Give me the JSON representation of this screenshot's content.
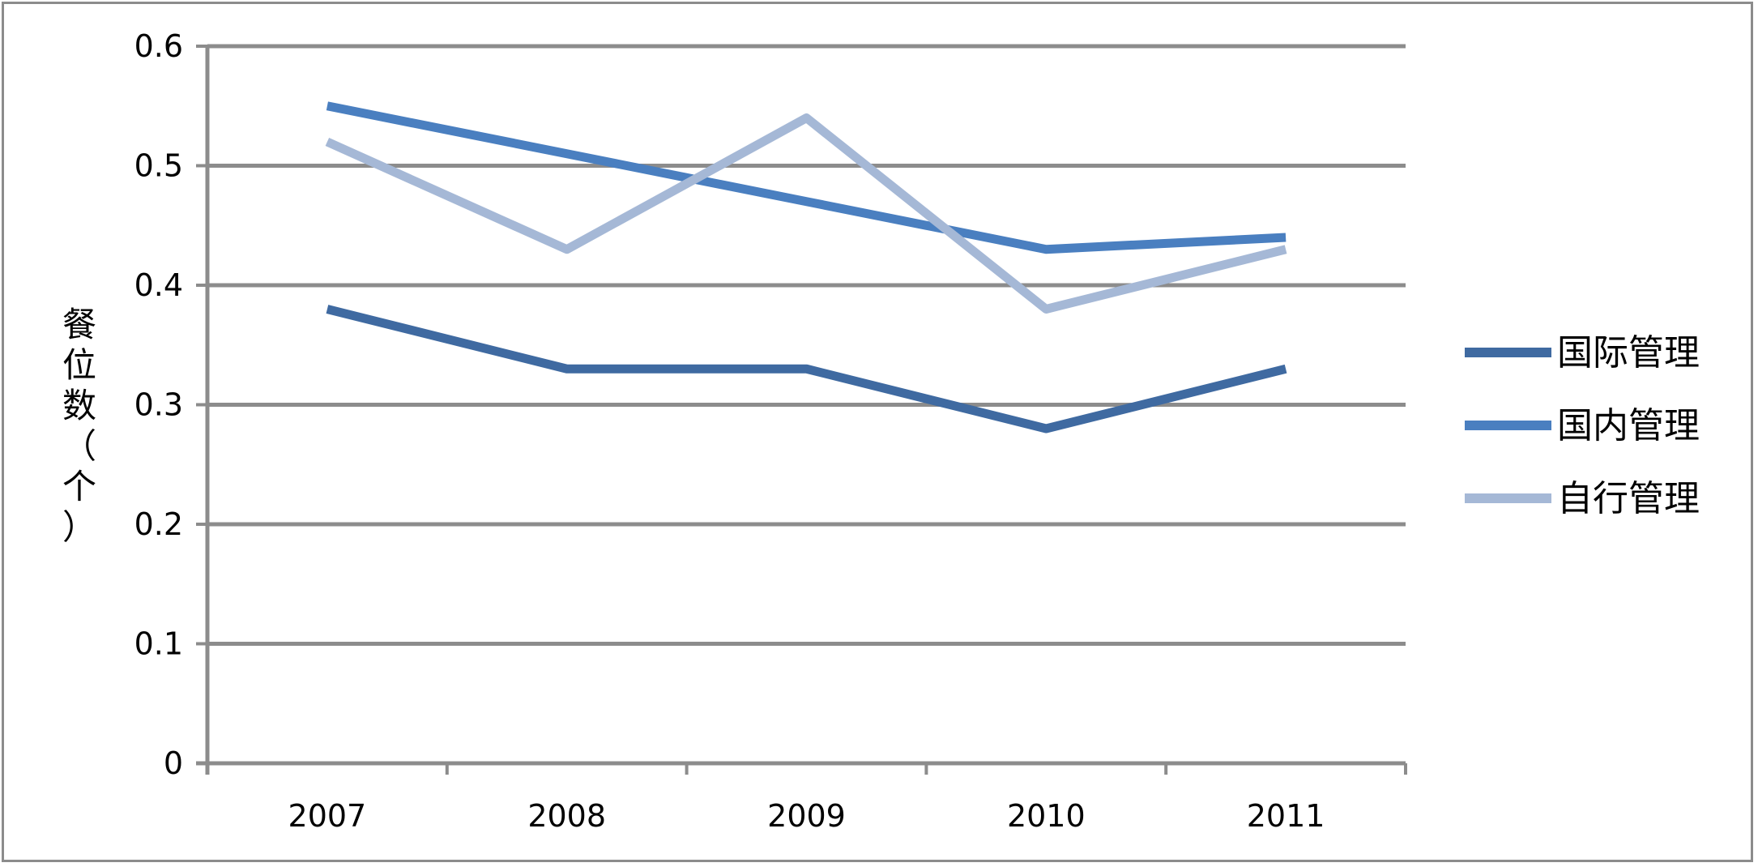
{
  "chart_data": {
    "type": "line",
    "title": "",
    "xlabel": "",
    "ylabel": "餐位数（个）",
    "categories": [
      "2007",
      "2008",
      "2009",
      "2010",
      "2011"
    ],
    "ylim": [
      0,
      0.6
    ],
    "yticks": [
      "0",
      "0.1",
      "0.2",
      "0.3",
      "0.4",
      "0.5",
      "0.6"
    ],
    "grid": true,
    "legend_position": "right",
    "series": [
      {
        "name": "国际管理",
        "color": "#3f6aa1",
        "values": [
          0.38,
          0.33,
          0.33,
          0.28,
          0.33
        ]
      },
      {
        "name": "国内管理",
        "color": "#4a7fc0",
        "values": [
          0.55,
          0.51,
          0.47,
          0.43,
          0.44
        ]
      },
      {
        "name": "自行管理",
        "color": "#a5b8d6",
        "values": [
          0.52,
          0.43,
          0.54,
          0.38,
          0.43
        ]
      }
    ]
  }
}
